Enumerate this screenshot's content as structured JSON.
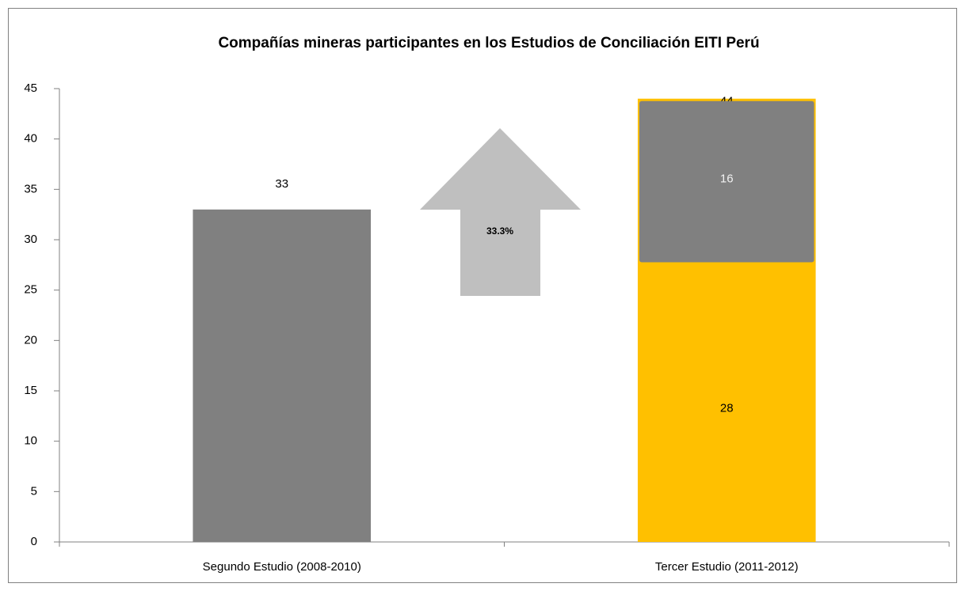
{
  "chart_data": {
    "type": "bar",
    "title": "Compañías mineras participantes en los Estudios de Conciliación EITI Perú",
    "categories": [
      "Segundo Estudio (2008-2010)",
      "Tercer Estudio (2011-2012)"
    ],
    "values": [
      33,
      44
    ],
    "colors": [
      "#808080",
      "#ffc000"
    ],
    "segments": [
      {
        "category": 1,
        "value": 28,
        "color": "#ffc000"
      },
      {
        "category": 1,
        "value": 16,
        "color": "#808080"
      }
    ],
    "annotation": "33.3%",
    "ylim": [
      0,
      45
    ],
    "yticks": [
      0,
      5,
      10,
      15,
      20,
      25,
      30,
      35,
      40,
      45
    ],
    "grid": false
  }
}
